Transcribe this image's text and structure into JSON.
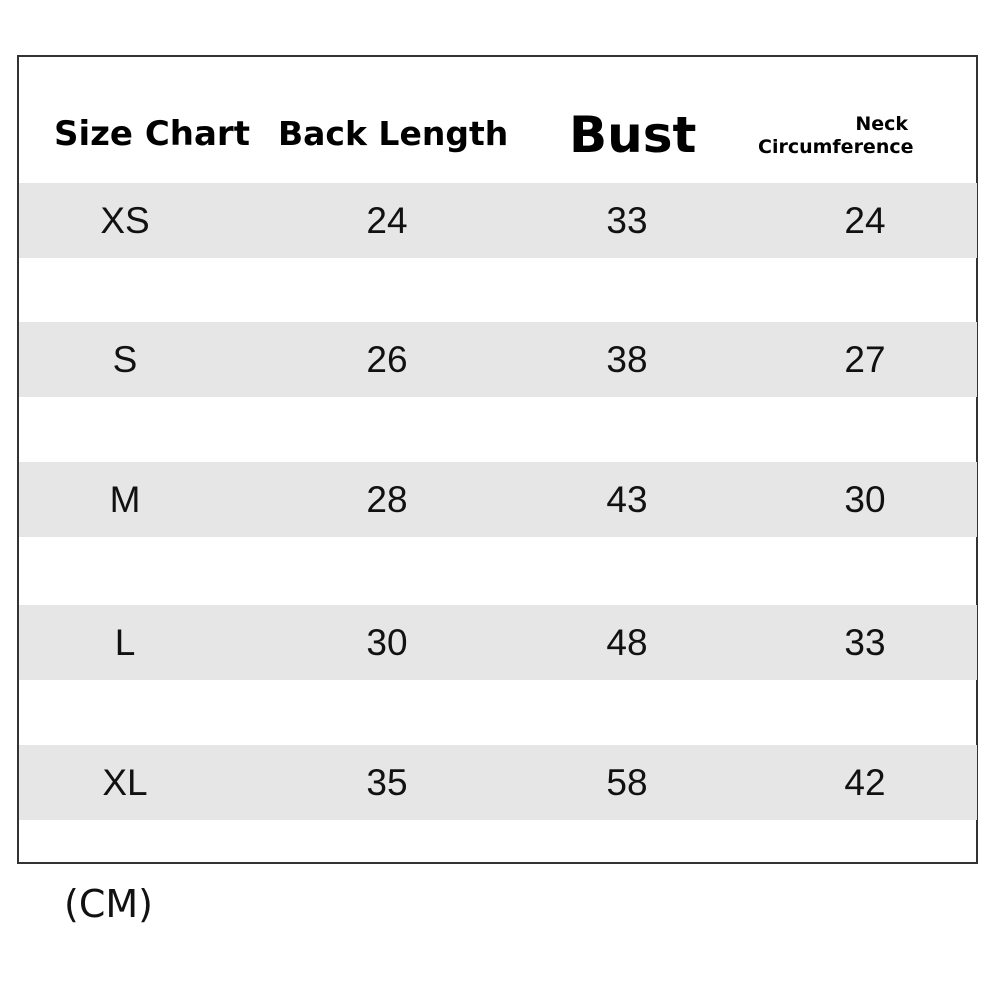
{
  "chart_data": {
    "type": "table",
    "columns": [
      "Size Chart",
      "Back Length",
      "Bust",
      "Neck Circumference"
    ],
    "rows": [
      [
        "XS",
        "24",
        "33",
        "24"
      ],
      [
        "S",
        "26",
        "38",
        "27"
      ],
      [
        "M",
        "28",
        "43",
        "30"
      ],
      [
        "L",
        "30",
        "48",
        "33"
      ],
      [
        "XL",
        "35",
        "58",
        "42"
      ]
    ],
    "unit": "(CM)",
    "band_color": "#e6e6e6"
  }
}
